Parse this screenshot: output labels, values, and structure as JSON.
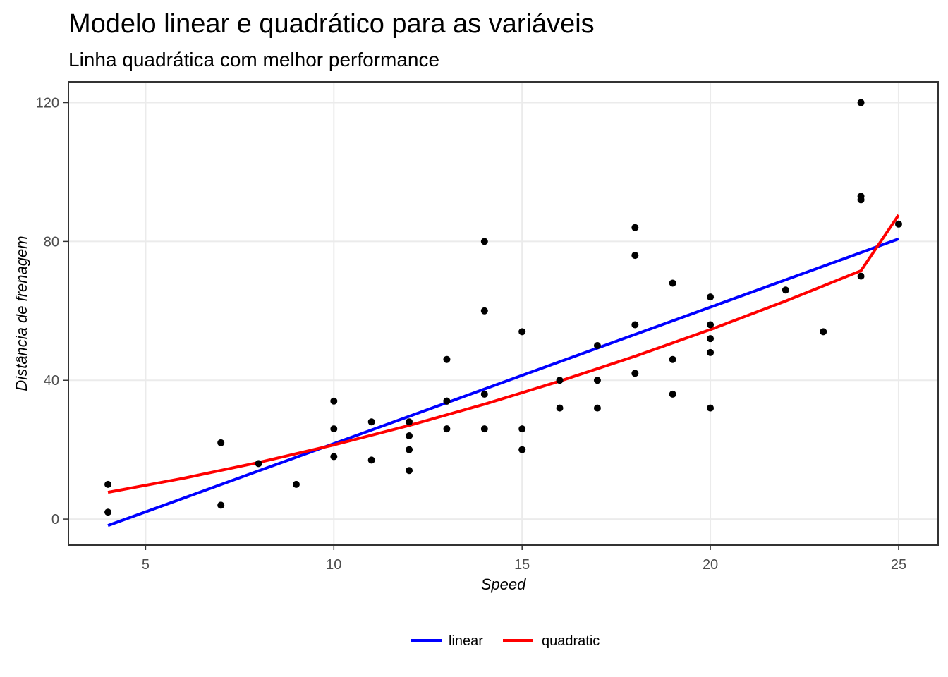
{
  "chart_data": {
    "type": "scatter",
    "title": "Modelo linear e quadrático para as variáveis",
    "subtitle": "Linha quadrática com melhor performance",
    "xlabel": "Speed",
    "ylabel": "Distância de frenagem",
    "xlim": [
      2.95,
      26.05
    ],
    "ylim": [
      -7.5,
      126.0
    ],
    "x_ticks": [
      5,
      10,
      15,
      20,
      25
    ],
    "y_ticks": [
      0,
      40,
      80,
      120
    ],
    "grid": true,
    "legend_position": "bottom",
    "colors": {
      "points": "#000000",
      "linear": "#0000ff",
      "quadratic": "#ff0000"
    },
    "points": [
      {
        "x": 4,
        "y": 2
      },
      {
        "x": 4,
        "y": 10
      },
      {
        "x": 7,
        "y": 4
      },
      {
        "x": 7,
        "y": 22
      },
      {
        "x": 8,
        "y": 16
      },
      {
        "x": 9,
        "y": 10
      },
      {
        "x": 10,
        "y": 18
      },
      {
        "x": 10,
        "y": 26
      },
      {
        "x": 10,
        "y": 34
      },
      {
        "x": 11,
        "y": 17
      },
      {
        "x": 11,
        "y": 28
      },
      {
        "x": 12,
        "y": 14
      },
      {
        "x": 12,
        "y": 20
      },
      {
        "x": 12,
        "y": 24
      },
      {
        "x": 12,
        "y": 28
      },
      {
        "x": 13,
        "y": 26
      },
      {
        "x": 13,
        "y": 34
      },
      {
        "x": 13,
        "y": 34
      },
      {
        "x": 13,
        "y": 46
      },
      {
        "x": 14,
        "y": 26
      },
      {
        "x": 14,
        "y": 36
      },
      {
        "x": 14,
        "y": 60
      },
      {
        "x": 14,
        "y": 80
      },
      {
        "x": 15,
        "y": 20
      },
      {
        "x": 15,
        "y": 26
      },
      {
        "x": 15,
        "y": 54
      },
      {
        "x": 16,
        "y": 32
      },
      {
        "x": 16,
        "y": 40
      },
      {
        "x": 17,
        "y": 32
      },
      {
        "x": 17,
        "y": 40
      },
      {
        "x": 17,
        "y": 50
      },
      {
        "x": 18,
        "y": 42
      },
      {
        "x": 18,
        "y": 56
      },
      {
        "x": 18,
        "y": 76
      },
      {
        "x": 18,
        "y": 84
      },
      {
        "x": 19,
        "y": 36
      },
      {
        "x": 19,
        "y": 46
      },
      {
        "x": 19,
        "y": 68
      },
      {
        "x": 20,
        "y": 32
      },
      {
        "x": 20,
        "y": 48
      },
      {
        "x": 20,
        "y": 52
      },
      {
        "x": 20,
        "y": 56
      },
      {
        "x": 20,
        "y": 64
      },
      {
        "x": 22,
        "y": 66
      },
      {
        "x": 23,
        "y": 54
      },
      {
        "x": 24,
        "y": 70
      },
      {
        "x": 24,
        "y": 92
      },
      {
        "x": 24,
        "y": 93
      },
      {
        "x": 24,
        "y": 120
      },
      {
        "x": 25,
        "y": 85
      }
    ],
    "series": [
      {
        "name": "linear",
        "color": "#0000ff",
        "x": [
          4,
          25
        ],
        "y": [
          -1.85,
          80.73
        ]
      },
      {
        "name": "quadratic",
        "color": "#ff0000",
        "x": [
          4,
          6,
          8,
          10,
          12,
          14,
          16,
          18,
          20,
          22,
          24,
          25
        ],
        "y": [
          7.72,
          11.75,
          16.31,
          21.38,
          26.98,
          33.1,
          39.75,
          46.92,
          54.61,
          62.82,
          71.56,
          87.6
        ]
      }
    ]
  }
}
